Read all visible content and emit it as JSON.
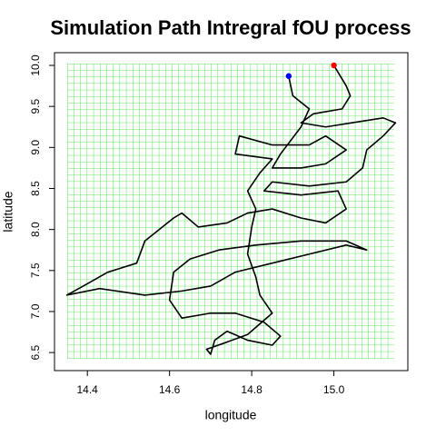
{
  "chart_data": {
    "type": "line",
    "title": "Simulation Path Intregral fOU process",
    "x_label": "longitude",
    "y_label": "latitude",
    "xlim": [
      14.32,
      15.18
    ],
    "ylim": [
      6.28,
      10.155
    ],
    "xticks": [
      14.4,
      14.6,
      14.8,
      {
        "value": 15.0,
        "label": "15.0"
      }
    ],
    "yticks": [
      6.5,
      {
        "value": 7.0,
        "label": "7.0"
      },
      7.5,
      {
        "value": 8.0,
        "label": "8.0"
      },
      8.5,
      {
        "value": 9.0,
        "label": "9.0"
      },
      9.5,
      {
        "value": 10.0,
        "label": "10.0"
      }
    ],
    "grid_color": "#33dd33",
    "color": "#000000",
    "start_color": "#ff0000",
    "end_color": "#0000ff",
    "x": [
      15.0,
      15.03,
      15.04,
      15.02,
      14.95,
      14.92,
      14.98,
      15.12,
      15.15,
      15.12,
      15.08,
      15.07,
      15.03,
      14.94,
      14.85,
      14.83,
      14.92,
      15.01,
      15.03,
      14.98,
      14.92,
      14.85,
      14.79,
      14.74,
      14.67,
      14.63,
      14.61,
      14.54,
      14.52,
      14.45,
      14.39,
      14.35,
      14.43,
      14.54,
      14.63,
      14.7,
      14.76,
      14.85,
      14.94,
      15.03,
      15.08,
      15.03,
      14.92,
      14.81,
      14.72,
      14.65,
      14.61,
      14.6,
      14.63,
      14.7,
      14.76,
      14.83,
      14.87,
      14.85,
      14.79,
      14.74,
      14.71,
      14.7,
      14.69,
      14.73,
      14.79,
      14.85,
      14.82,
      14.81,
      14.79,
      14.8,
      14.81,
      14.79,
      14.82,
      14.85,
      14.76,
      14.77,
      14.85,
      14.94,
      14.98,
      15.03,
      14.98,
      14.92,
      14.85,
      14.87,
      14.92,
      14.94,
      14.9,
      14.89
    ],
    "y": [
      10.0,
      9.75,
      9.63,
      9.47,
      9.41,
      9.3,
      9.25,
      9.36,
      9.3,
      9.14,
      8.97,
      8.75,
      8.58,
      8.53,
      8.58,
      8.47,
      8.42,
      8.47,
      8.25,
      8.08,
      8.14,
      8.25,
      8.2,
      8.08,
      8.03,
      8.2,
      8.14,
      7.86,
      7.59,
      7.48,
      7.31,
      7.2,
      7.28,
      7.2,
      7.25,
      7.31,
      7.48,
      7.59,
      7.7,
      7.81,
      7.75,
      7.86,
      7.86,
      7.81,
      7.75,
      7.64,
      7.48,
      7.14,
      6.92,
      6.98,
      6.98,
      6.87,
      6.7,
      6.59,
      6.65,
      6.76,
      6.65,
      6.48,
      6.54,
      6.61,
      6.72,
      6.98,
      7.2,
      7.42,
      7.7,
      8.03,
      8.25,
      8.47,
      8.69,
      8.86,
      8.92,
      9.14,
      9.03,
      9.03,
      9.14,
      8.97,
      8.8,
      8.75,
      8.75,
      8.92,
      9.25,
      9.47,
      9.63,
      9.87
    ]
  }
}
